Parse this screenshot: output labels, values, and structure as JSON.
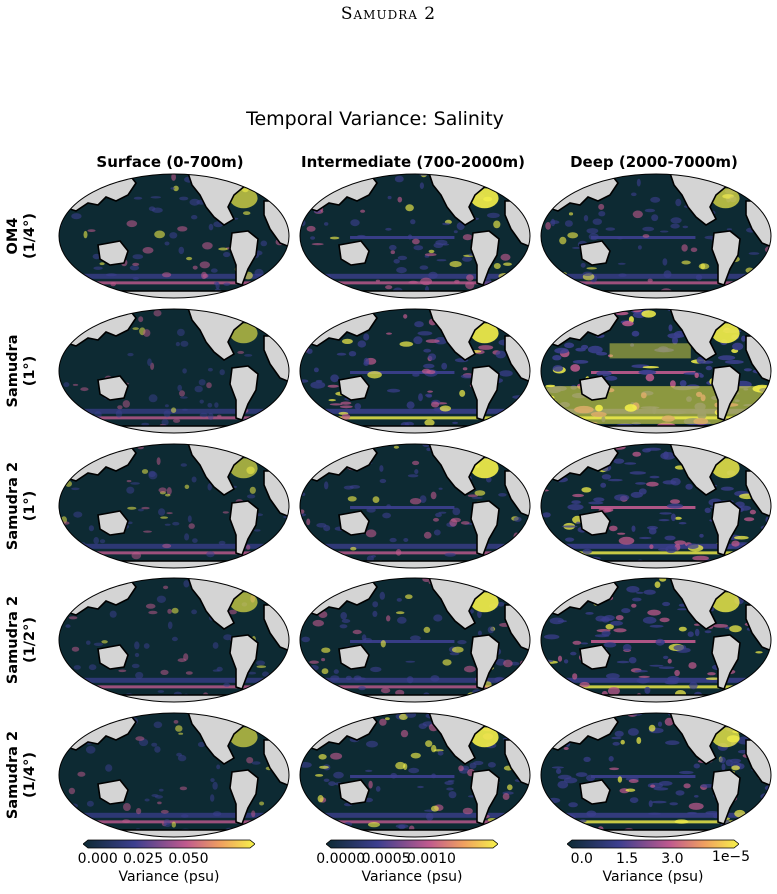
{
  "page": {
    "running_head": "Samudra 2"
  },
  "figure": {
    "title": "Temporal Variance: Salinity",
    "columns": [
      "Surface (0-700m)",
      "Intermediate (700-2000m)",
      "Deep (2000-7000m)"
    ],
    "rows": [
      {
        "line1": "OM4",
        "line2": "(1/4°)"
      },
      {
        "line1": "Samudra",
        "line2": "(1°)"
      },
      {
        "line1": "Samudra 2",
        "line2": "(1°)"
      },
      {
        "line1": "Samudra 2",
        "line2": "(1/2°)"
      },
      {
        "line1": "Samudra 2",
        "line2": "(1/4°)"
      }
    ],
    "colorbars": [
      {
        "ticks": [
          "0.000",
          "0.025",
          "0.050"
        ],
        "label": "Variance (psu)",
        "offset": ""
      },
      {
        "ticks": [
          "0.0000",
          "0.0005",
          "0.0010"
        ],
        "label": "Variance (psu)",
        "offset": ""
      },
      {
        "ticks": [
          "0.0",
          "1.5",
          "3.0"
        ],
        "label": "Variance (psu)",
        "offset": "1e−5"
      }
    ],
    "colors": {
      "ocean_dark": "#0d2a33",
      "land": "#d4d4d4",
      "low": "#3c3f8f",
      "mid": "#c05a8e",
      "high": "#f6f24a"
    }
  }
}
